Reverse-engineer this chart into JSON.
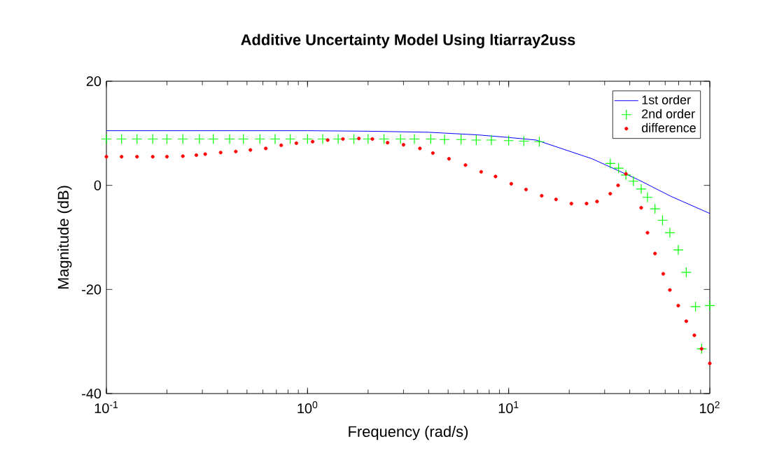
{
  "chart_data": {
    "type": "line",
    "title": "Additive Uncertainty Model Using ltiarray2uss",
    "xlabel": "Frequency (rad/s)",
    "ylabel": "Magnitude (dB)",
    "log": "x",
    "legend": "top right",
    "grid": false,
    "xlim": [
      0.1,
      100
    ],
    "ylim": [
      -40,
      20
    ],
    "xticks": [
      {
        "value": 0.1,
        "label": "10$^{-1}$"
      },
      {
        "value": 1,
        "label": "10$^{0}$"
      },
      {
        "value": 10,
        "label": "10$^{1}$"
      },
      {
        "value": 100,
        "label": "10$^{2}$"
      }
    ],
    "yticks": [
      -40,
      -20,
      0,
      20
    ],
    "series": [
      {
        "name": "1st order",
        "color": "#0000ff",
        "marker": "none",
        "line_style": "solid",
        "x": [
          0.1,
          1,
          2,
          4,
          7,
          10,
          13.7,
          26,
          44,
          64,
          100
        ],
        "values": [
          10.5,
          10.5,
          10.4,
          10.2,
          9.7,
          9.2,
          8.7,
          5.1,
          1.1,
          -2.1,
          -5.4
        ]
      },
      {
        "name": "2nd order",
        "type": "scatter",
        "color": "#00ff00",
        "marker": "cross",
        "x": [
          0.1,
          0.119,
          0.142,
          0.17,
          0.2,
          0.24,
          0.29,
          0.34,
          0.41,
          0.48,
          0.58,
          0.69,
          0.82,
          1,
          1.19,
          1.42,
          1.7,
          2,
          2.4,
          2.9,
          3.4,
          4.1,
          4.8,
          5.8,
          6.9,
          8.2,
          10,
          11.9,
          14.2,
          32,
          35.2,
          38.3,
          41.7,
          45.6,
          49,
          53.4,
          58.2,
          63.3,
          69.7,
          76.4,
          84.9,
          91.1,
          100
        ],
        "values": [
          8.9,
          8.9,
          8.9,
          8.9,
          8.9,
          8.9,
          8.9,
          8.9,
          8.9,
          8.9,
          8.9,
          8.9,
          8.9,
          8.9,
          8.9,
          8.9,
          8.9,
          8.9,
          8.9,
          8.9,
          8.9,
          8.9,
          8.8,
          8.8,
          8.7,
          8.7,
          8.6,
          8.5,
          8.4,
          4.2,
          3.3,
          2.0,
          0.8,
          -0.7,
          -2.3,
          -4.5,
          -6.7,
          -9.1,
          -12.4,
          -16.7,
          -23.3,
          -31.4,
          -23.1
        ]
      },
      {
        "name": "difference",
        "type": "scatter",
        "color": "#ff0000",
        "marker": "circle",
        "x": [
          0.1,
          0.119,
          0.142,
          0.17,
          0.2,
          0.24,
          0.28,
          0.31,
          0.37,
          0.44,
          0.52,
          0.62,
          0.74,
          0.88,
          1.06,
          1.26,
          1.5,
          1.8,
          2.1,
          2.5,
          3.0,
          3.62,
          4.2,
          5.05,
          6.1,
          7.3,
          8.6,
          10.3,
          12.2,
          14.6,
          17.2,
          20.5,
          24.4,
          27.5,
          32,
          35,
          38.3,
          45.6,
          49,
          53.4,
          58.7,
          63.3,
          69.7,
          76.4,
          83.8,
          91,
          100
        ],
        "values": [
          5.5,
          5.5,
          5.5,
          5.5,
          5.5,
          5.6,
          5.8,
          6.0,
          6.3,
          6.5,
          6.8,
          7.1,
          7.7,
          8.1,
          8.4,
          8.7,
          8.9,
          9.0,
          8.9,
          8.2,
          7.8,
          7.1,
          6.2,
          5.1,
          3.9,
          2.6,
          1.7,
          0.3,
          -0.8,
          -2.0,
          -2.7,
          -3.5,
          -3.5,
          -3.1,
          -1.6,
          0,
          2.2,
          -4.3,
          -9.1,
          -13.1,
          -17.0,
          -20.1,
          -23.1,
          -26.1,
          -28.8,
          -31.4,
          -34.2
        ]
      }
    ]
  }
}
